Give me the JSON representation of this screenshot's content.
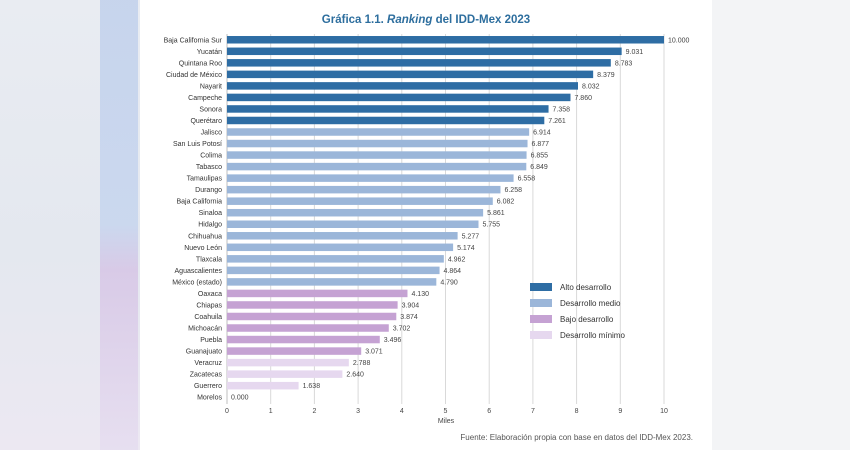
{
  "chart_data": {
    "type": "bar",
    "orientation": "horizontal",
    "title_prefix": "Gráfica 1.1. ",
    "title_emph": "Ranking",
    "title_suffix": " del IDD-Mex 2023",
    "xlabel": "Miles",
    "xlim": [
      0,
      10
    ],
    "xticks": [
      "0",
      "1",
      "2",
      "3",
      "4",
      "5",
      "6",
      "7",
      "8",
      "9",
      "10"
    ],
    "grid": true,
    "legend_position": "right",
    "categories": [
      "Baja California Sur",
      "Yucatán",
      "Quintana Roo",
      "Ciudad de México",
      "Nayarit",
      "Campeche",
      "Sonora",
      "Querétaro",
      "Jalisco",
      "San Luis Potosí",
      "Colima",
      "Tabasco",
      "Tamaulipas",
      "Durango",
      "Baja California",
      "Sinaloa",
      "Hidalgo",
      "Chihuahua",
      "Nuevo León",
      "Tlaxcala",
      "Aguascalientes",
      "México (estado)",
      "Oaxaca",
      "Chiapas",
      "Coahuila",
      "Michoacán",
      "Puebla",
      "Guanajuato",
      "Veracruz",
      "Zacatecas",
      "Guerrero",
      "Morelos"
    ],
    "values": [
      10.0,
      9.031,
      8.783,
      8.379,
      8.032,
      7.86,
      7.358,
      7.261,
      6.914,
      6.877,
      6.855,
      6.849,
      6.558,
      6.258,
      6.082,
      5.861,
      5.755,
      5.277,
      5.174,
      4.962,
      4.864,
      4.79,
      4.13,
      3.904,
      3.874,
      3.702,
      3.496,
      3.071,
      2.788,
      2.64,
      1.638,
      0.0
    ],
    "value_labels": [
      "10.000",
      "9.031",
      "8.783",
      "8.379",
      "8.032",
      "7.860",
      "7.358",
      "7.261",
      "6.914",
      "6.877",
      "6.855",
      "6.849",
      "6.558",
      "6.258",
      "6.082",
      "5.861",
      "5.755",
      "5.277",
      "5.174",
      "4.962",
      "4.864",
      "4.790",
      "4.130",
      "3.904",
      "3.874",
      "3.702",
      "3.496",
      "3.071",
      "2.788",
      "2.640",
      "1.638",
      "0.000"
    ],
    "groups": [
      0,
      0,
      0,
      0,
      0,
      0,
      0,
      0,
      1,
      1,
      1,
      1,
      1,
      1,
      1,
      1,
      1,
      1,
      1,
      1,
      1,
      1,
      2,
      2,
      2,
      2,
      2,
      2,
      3,
      3,
      3,
      3
    ],
    "legend": [
      {
        "label": "Alto desarrollo",
        "color": "#2e6da4"
      },
      {
        "label": "Desarrollo medio",
        "color": "#9bb6d9"
      },
      {
        "label": "Bajo desarrollo",
        "color": "#c5a2d3"
      },
      {
        "label": "Desarrollo mínimo",
        "color": "#e6d8ef"
      }
    ],
    "source": "Fuente: Elaboración propia con base en datos del IDD-Mex 2023."
  }
}
